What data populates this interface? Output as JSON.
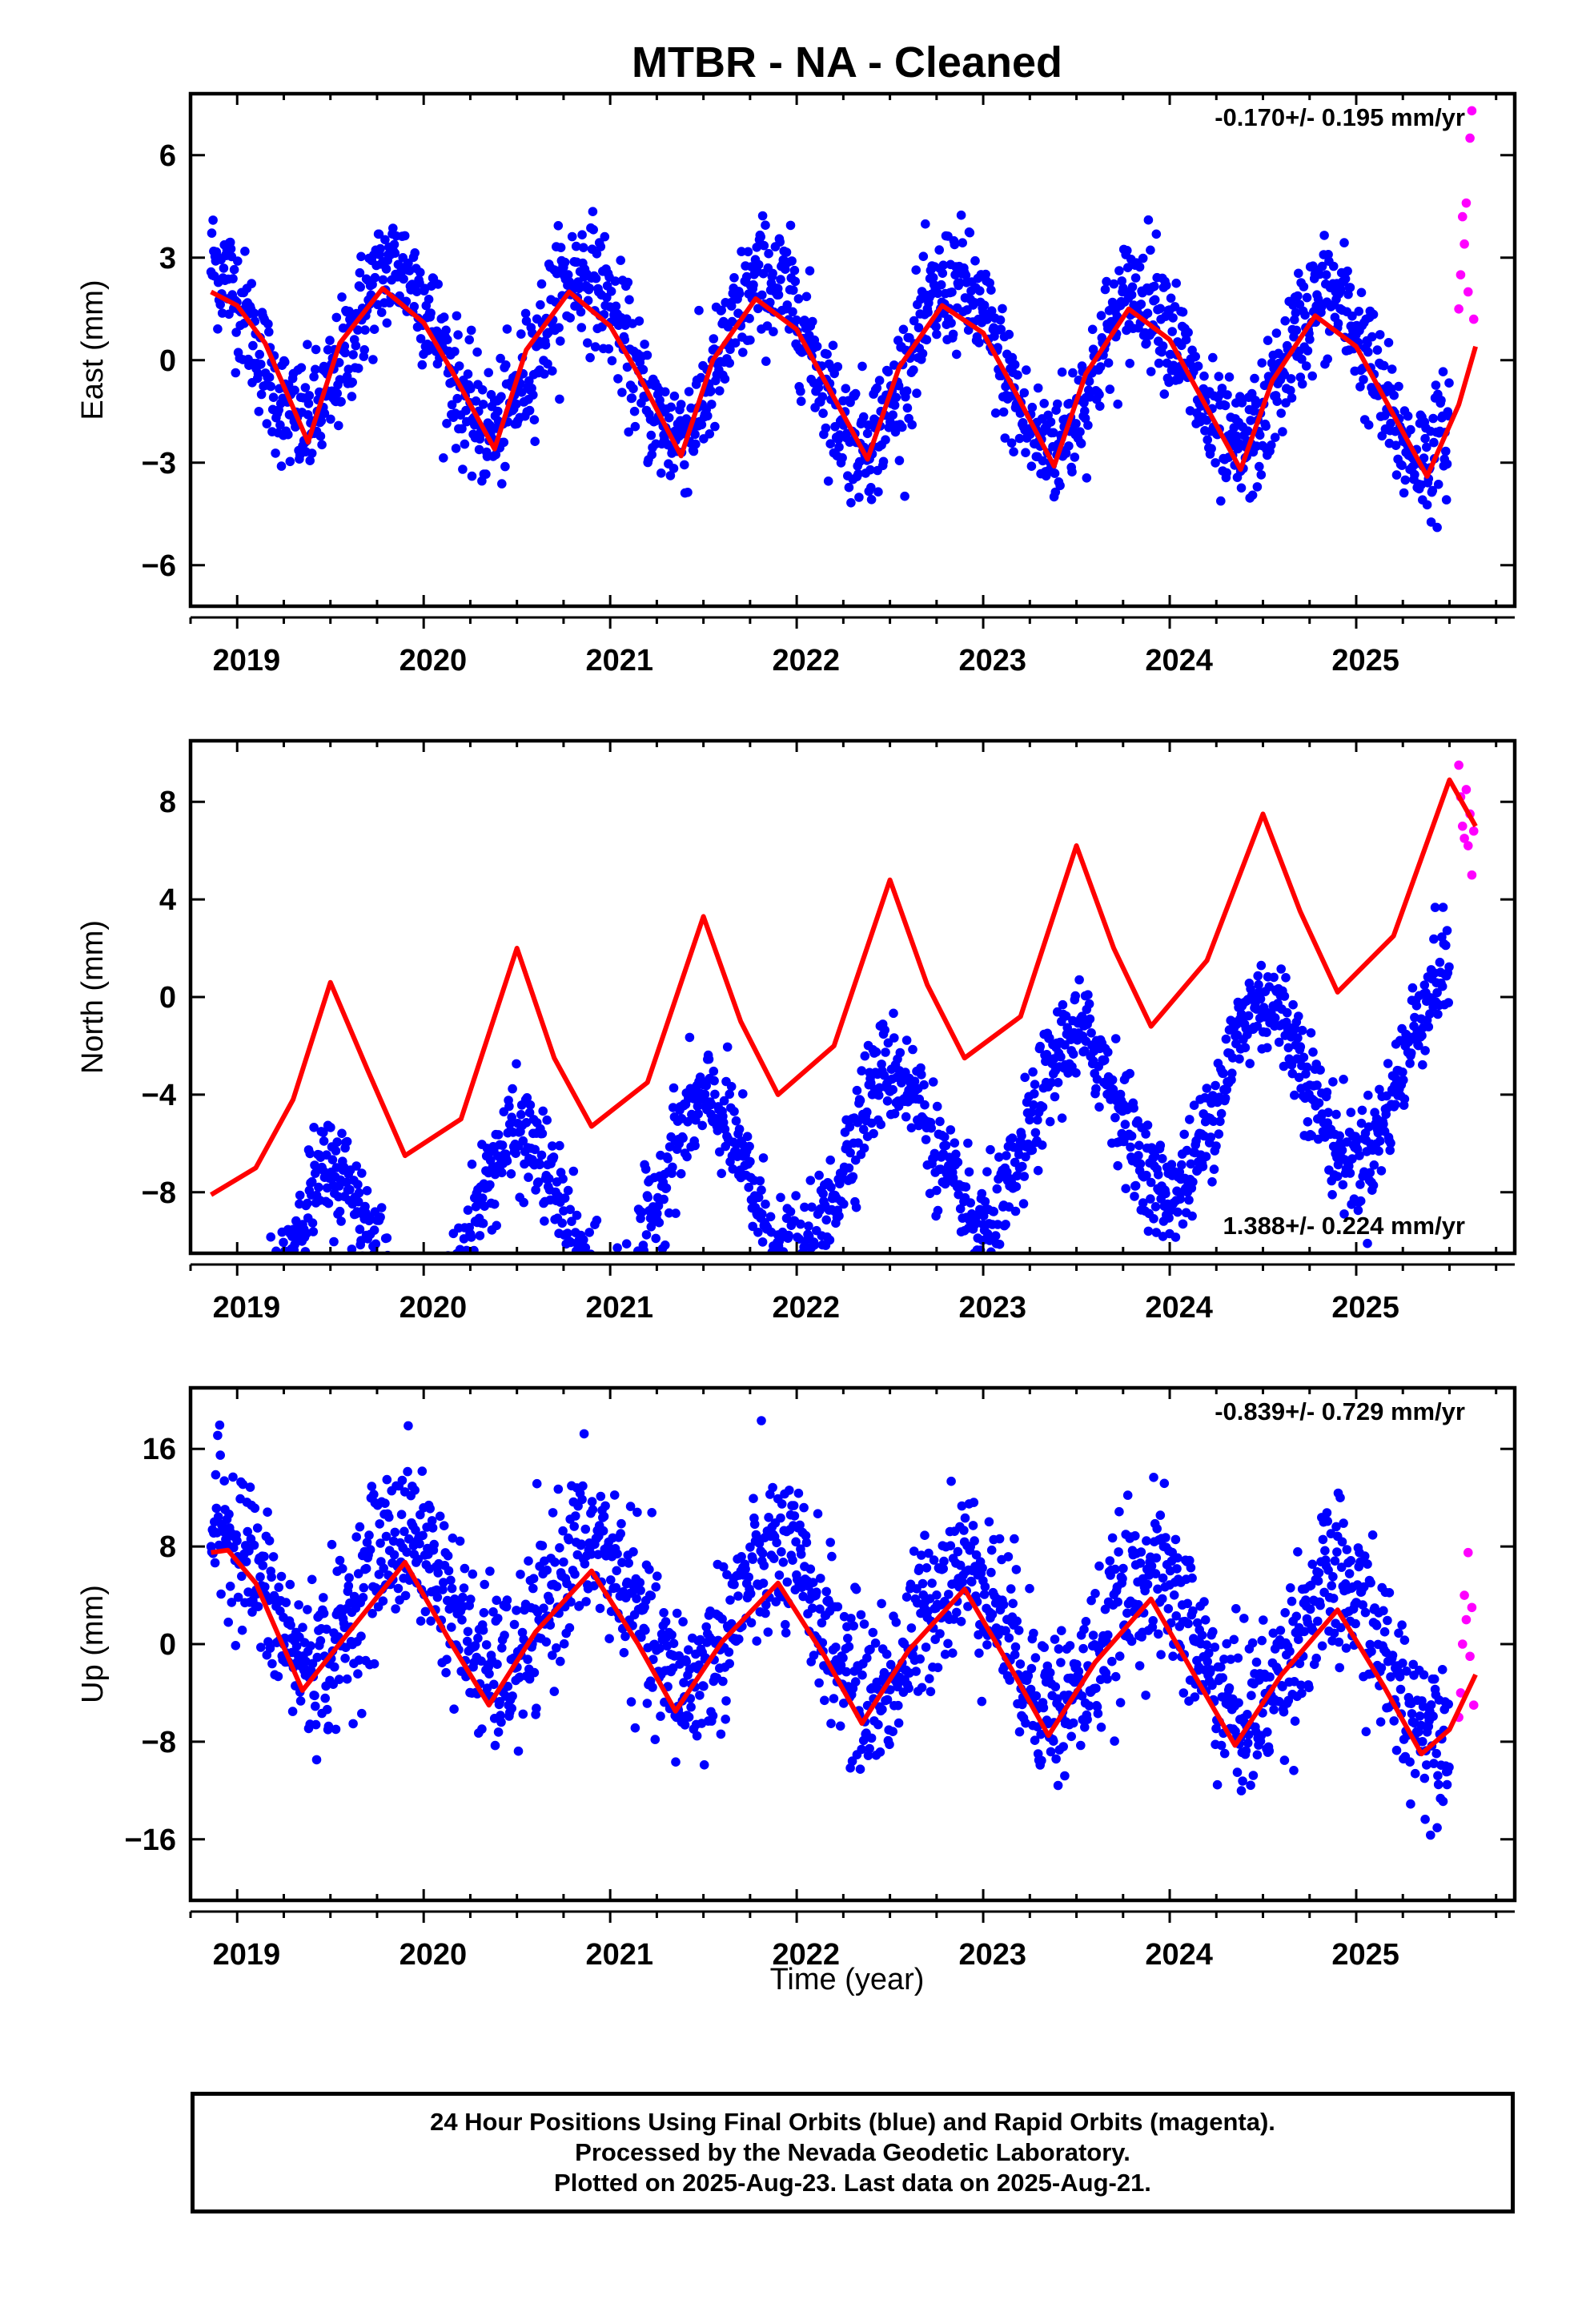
{
  "title": "MTBR  - NA - Cleaned",
  "xlabel": "Time (year)",
  "footer": {
    "line1": "24 Hour Positions Using Final Orbits (blue) and Rapid Orbits (magenta).",
    "line2": "Processed by the Nevada Geodetic Laboratory.",
    "line3": "Plotted on 2025-Aug-23. Last data on 2025-Aug-21."
  },
  "colors": {
    "final": "#0000ff",
    "rapid": "#ff00ff",
    "model": "#ff0000",
    "axes": "#000000"
  },
  "chart_data": [
    {
      "type": "scatter",
      "panel": "east",
      "ylabel": "East (mm)",
      "rate": "-0.170+/- 0.195 mm/yr",
      "rate_position": "top-right",
      "xlim": [
        2018.75,
        2025.85
      ],
      "ylim": [
        -7.2,
        7.8
      ],
      "xticks": [
        2019,
        2020,
        2021,
        2022,
        2023,
        2024,
        2025
      ],
      "yticks": [
        -6,
        -3,
        0,
        3,
        6
      ],
      "final_orbits": {
        "start": 2018.86,
        "end": 2025.5,
        "trend": -0.17,
        "offset": 0.0,
        "annual_amplitude": 2.3,
        "annual_peak": 2018.85,
        "scatter": 0.9
      },
      "rapid_orbits": {
        "x": [
          2025.55,
          2025.56,
          2025.57,
          2025.58,
          2025.59,
          2025.6,
          2025.61,
          2025.62,
          2025.63
        ],
        "y": [
          1.5,
          2.5,
          4.2,
          3.4,
          4.6,
          2.0,
          6.5,
          7.3,
          1.2
        ]
      },
      "model_curve": {
        "x": [
          2018.86,
          2019.0,
          2019.15,
          2019.38,
          2019.55,
          2019.78,
          2020.0,
          2020.15,
          2020.38,
          2020.55,
          2020.78,
          2021.0,
          2021.15,
          2021.38,
          2021.55,
          2021.78,
          2022.0,
          2022.15,
          2022.38,
          2022.55,
          2022.78,
          2023.0,
          2023.15,
          2023.38,
          2023.55,
          2023.78,
          2024.0,
          2024.15,
          2024.38,
          2024.55,
          2024.78,
          2025.0,
          2025.15,
          2025.38,
          2025.55,
          2025.64
        ],
        "y": [
          2.0,
          1.6,
          0.5,
          -2.4,
          0.5,
          2.1,
          1.1,
          -0.3,
          -2.6,
          0.3,
          2.0,
          1.0,
          -0.4,
          -2.8,
          0.0,
          1.8,
          0.9,
          -0.6,
          -2.9,
          -0.2,
          1.6,
          0.8,
          -0.7,
          -3.1,
          -0.4,
          1.5,
          0.6,
          -0.9,
          -3.2,
          -0.6,
          1.3,
          0.4,
          -1.1,
          -3.4,
          -1.3,
          0.4
        ]
      }
    },
    {
      "type": "scatter",
      "panel": "north",
      "ylabel": "North (mm)",
      "rate": "1.388+/- 0.224 mm/yr",
      "rate_position": "bottom-right",
      "xlim": [
        2018.75,
        2025.85
      ],
      "ylim": [
        -10.5,
        10.5
      ],
      "xticks": [
        2019,
        2020,
        2021,
        2022,
        2023,
        2024,
        2025
      ],
      "yticks": [
        -8,
        -4,
        0,
        4,
        8
      ],
      "final_orbits": {
        "start": 2018.86,
        "end": 2025.5,
        "trend": 1.388,
        "offset": -7.0,
        "annual_amplitude": 3.6,
        "annual_peak": 2019.5,
        "scatter": 1.1
      },
      "rapid_orbits": {
        "x": [
          2025.55,
          2025.56,
          2025.57,
          2025.58,
          2025.59,
          2025.6,
          2025.61,
          2025.62,
          2025.63
        ],
        "y": [
          9.5,
          8.2,
          7.0,
          6.5,
          8.5,
          6.2,
          7.5,
          5.0,
          6.8
        ]
      },
      "model_curve": {
        "x": [
          2018.86,
          2019.1,
          2019.3,
          2019.5,
          2019.7,
          2019.9,
          2020.2,
          2020.5,
          2020.7,
          2020.9,
          2021.2,
          2021.5,
          2021.7,
          2021.9,
          2022.2,
          2022.5,
          2022.7,
          2022.9,
          2023.2,
          2023.5,
          2023.7,
          2023.9,
          2024.2,
          2024.5,
          2024.7,
          2024.9,
          2025.2,
          2025.5,
          2025.64
        ],
        "y": [
          -8.1,
          -7.0,
          -4.2,
          0.6,
          -3.0,
          -6.5,
          -5.0,
          2.0,
          -2.5,
          -5.3,
          -3.5,
          3.3,
          -1.0,
          -4.0,
          -2.0,
          4.8,
          0.5,
          -2.5,
          -0.8,
          6.2,
          2.0,
          -1.2,
          1.5,
          7.5,
          3.5,
          0.2,
          2.5,
          8.9,
          7.0
        ]
      }
    },
    {
      "type": "scatter",
      "panel": "up",
      "ylabel": "Up (mm)",
      "rate": "-0.839+/- 0.729 mm/yr",
      "rate_position": "top-right",
      "xlim": [
        2018.75,
        2025.85
      ],
      "ylim": [
        -21,
        21
      ],
      "xticks": [
        2019,
        2020,
        2021,
        2022,
        2023,
        2024,
        2025
      ],
      "yticks": [
        -16,
        -8,
        0,
        8,
        16
      ],
      "final_orbits": {
        "start": 2018.86,
        "end": 2025.5,
        "trend": -0.839,
        "offset": 1.5,
        "annual_amplitude": 5.5,
        "annual_peak": 2018.9,
        "scatter": 3.3
      },
      "rapid_orbits": {
        "x": [
          2025.55,
          2025.56,
          2025.57,
          2025.58,
          2025.59,
          2025.6,
          2025.61,
          2025.62,
          2025.63
        ],
        "y": [
          -6,
          -4,
          0,
          4,
          2,
          7.5,
          -1,
          3,
          -5
        ]
      },
      "model_curve": {
        "x": [
          2018.86,
          2018.95,
          2019.1,
          2019.35,
          2019.6,
          2019.9,
          2020.15,
          2020.35,
          2020.6,
          2020.9,
          2021.15,
          2021.35,
          2021.6,
          2021.9,
          2022.15,
          2022.35,
          2022.6,
          2022.9,
          2023.15,
          2023.35,
          2023.6,
          2023.9,
          2024.15,
          2024.35,
          2024.6,
          2024.9,
          2025.15,
          2025.35,
          2025.5,
          2025.64
        ],
        "y": [
          7.5,
          7.7,
          5.0,
          -3.8,
          1.0,
          6.7,
          0.0,
          -5.0,
          1.0,
          6.0,
          0.0,
          -5.5,
          0.2,
          5.0,
          -1.0,
          -6.5,
          -0.5,
          4.5,
          -2.0,
          -7.5,
          -1.5,
          3.7,
          -3.0,
          -8.3,
          -2.5,
          2.8,
          -3.5,
          -9.0,
          -7.0,
          -2.5
        ]
      }
    }
  ]
}
